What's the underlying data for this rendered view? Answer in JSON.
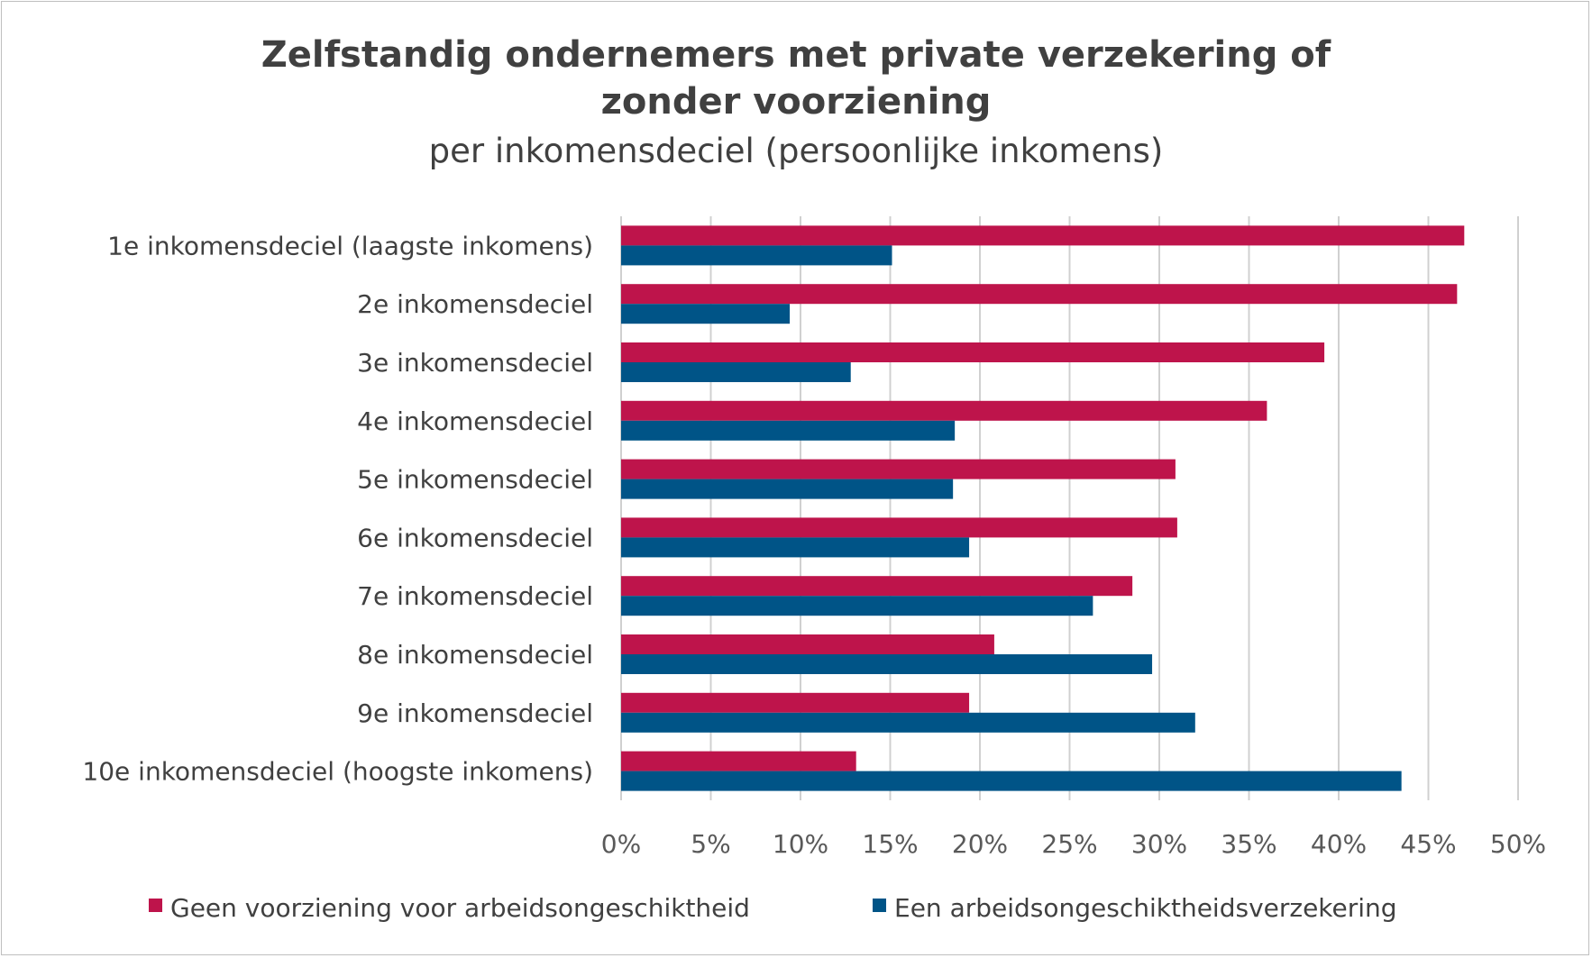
{
  "chart_data": {
    "type": "bar",
    "orientation": "horizontal",
    "title": [
      "Zelfstandig ondernemers met private verzekering of",
      "zonder voorziening"
    ],
    "subtitle": "per inkomensdeciel (persoonlijke inkomens)",
    "categories": [
      "1e inkomensdeciel (laagste inkomens)",
      "2e inkomensdeciel",
      "3e inkomensdeciel",
      "4e inkomensdeciel",
      "5e inkomensdeciel",
      "6e inkomensdeciel",
      "7e inkomensdeciel",
      "8e inkomensdeciel",
      "9e inkomensdeciel",
      "10e inkomensdeciel (hoogste inkomens)"
    ],
    "series": [
      {
        "name": "Geen voorziening voor arbeidsongeschiktheid",
        "color": "#be144b",
        "values": [
          47.0,
          46.6,
          39.2,
          36.0,
          30.9,
          31.0,
          28.5,
          20.8,
          19.4,
          13.1
        ]
      },
      {
        "name": "Een arbeidsongeschiktheidsverzekering",
        "color": "#005487",
        "values": [
          15.1,
          9.4,
          12.8,
          18.6,
          18.5,
          19.4,
          26.3,
          29.6,
          32.0,
          43.5
        ]
      }
    ],
    "xlim": [
      0,
      50
    ],
    "xticks": [
      0,
      5,
      10,
      15,
      20,
      25,
      30,
      35,
      40,
      45,
      50
    ],
    "xtick_labels": [
      "0%",
      "5%",
      "10%",
      "15%",
      "20%",
      "25%",
      "30%",
      "35%",
      "40%",
      "45%",
      "50%"
    ],
    "xlabel": "",
    "ylabel": "",
    "grid": "vertical",
    "legend": "bottom"
  }
}
